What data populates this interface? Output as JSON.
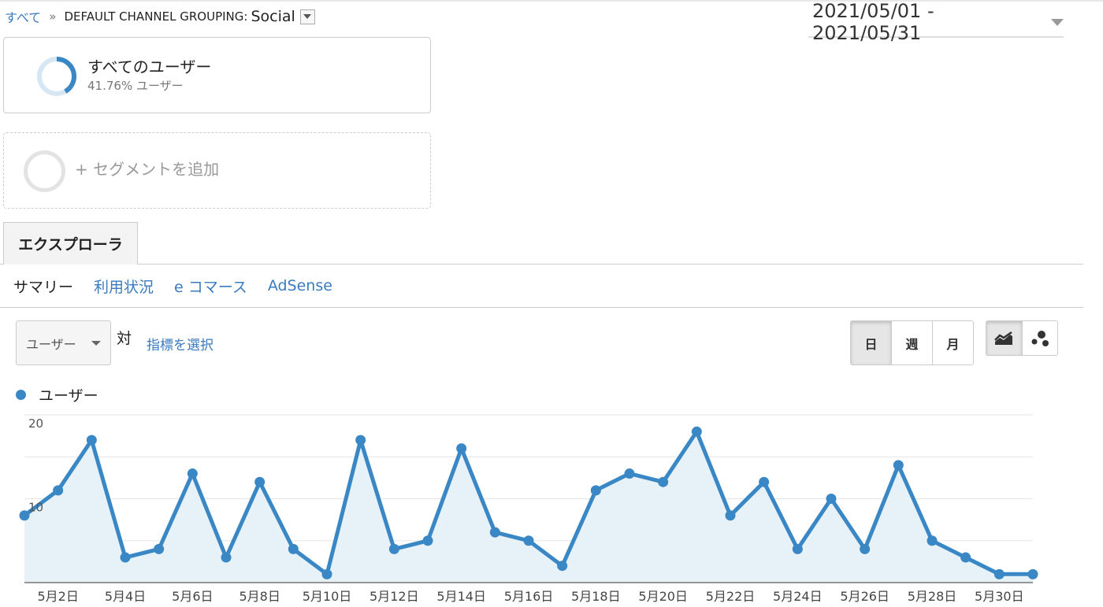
{
  "breadcrumb": {
    "root": "すべて",
    "separator": "»",
    "dimension": "DEFAULT CHANNEL GROUPING:",
    "value": "Social"
  },
  "date_range": "2021/05/01 - 2021/05/31",
  "segments": {
    "active": {
      "title": "すべてのユーザー",
      "subtitle": "41.76% ユーザー",
      "share": 0.4176
    },
    "add_label": "+ セグメントを追加"
  },
  "tabs": {
    "explorer": "エクスプローラ"
  },
  "subtabs": [
    "サマリー",
    "利用状況",
    "e コマース",
    "AdSense"
  ],
  "controls": {
    "metric": "ユーザー",
    "vs": "対",
    "select_metric": "指標を選択",
    "periods": [
      "日",
      "週",
      "月"
    ],
    "active_period": "日"
  },
  "colors": {
    "accent": "#3a87c6",
    "link": "#3a7bbf",
    "area_fill": "#e6f1f8"
  },
  "legend": {
    "label": "ユーザー"
  },
  "chart_data": {
    "type": "area",
    "title": "",
    "xlabel": "",
    "ylabel": "",
    "series": [
      {
        "name": "ユーザー",
        "values": [
          8,
          11,
          17,
          3,
          4,
          13,
          3,
          12,
          4,
          1,
          17,
          4,
          5,
          16,
          6,
          5,
          2,
          11,
          13,
          12,
          18,
          8,
          12,
          4,
          10,
          4,
          14,
          5,
          3,
          1,
          1
        ]
      }
    ],
    "x": [
      "5月1日",
      "5月2日",
      "5月3日",
      "5月4日",
      "5月5日",
      "5月6日",
      "5月7日",
      "5月8日",
      "5月9日",
      "5月10日",
      "5月11日",
      "5月12日",
      "5月13日",
      "5月14日",
      "5月15日",
      "5月16日",
      "5月17日",
      "5月18日",
      "5月19日",
      "5月20日",
      "5月21日",
      "5月22日",
      "5月23日",
      "5月24日",
      "5月25日",
      "5月26日",
      "5月27日",
      "5月28日",
      "5月29日",
      "5月30日",
      "5月31日"
    ],
    "x_tick_labels": [
      "5月2日",
      "5月4日",
      "5月6日",
      "5月8日",
      "5月10日",
      "5月12日",
      "5月14日",
      "5月16日",
      "5月18日",
      "5月20日",
      "5月22日",
      "5月24日",
      "5月26日",
      "5月28日",
      "5月30日"
    ],
    "y_tick_labels": [
      "20",
      "10"
    ],
    "ylim": [
      0,
      20
    ],
    "grid": true
  }
}
